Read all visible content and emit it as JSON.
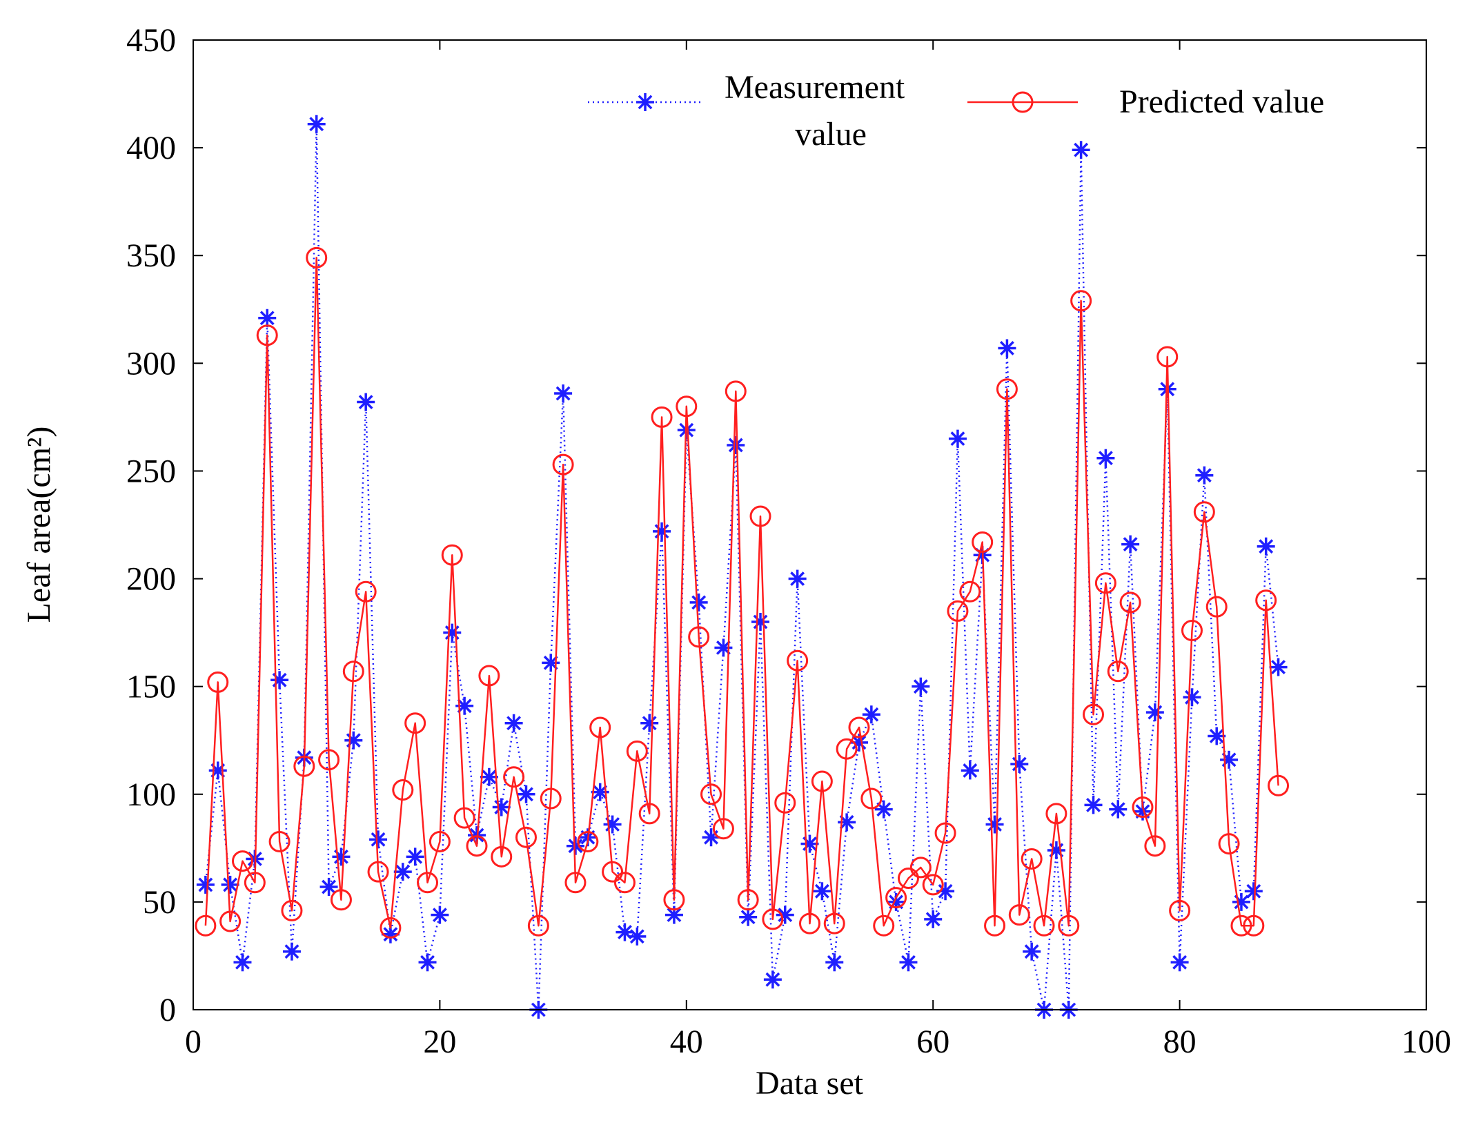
{
  "chart_data": {
    "type": "line",
    "title": "",
    "xlabel": "Data set",
    "ylabel": "Leaf area(cm²)",
    "xlim": [
      0,
      100
    ],
    "ylim": [
      0,
      450
    ],
    "xticks": [
      0,
      20,
      40,
      60,
      80,
      100
    ],
    "yticks": [
      0,
      50,
      100,
      150,
      200,
      250,
      300,
      350,
      400,
      450
    ],
    "grid": false,
    "legend_position": "top-right",
    "series": [
      {
        "name": "Measurement value",
        "name_lines": [
          "Measurement",
          "value"
        ],
        "color": "#1f1fff",
        "line_style": "dotted",
        "marker": "asterisk",
        "x": [
          1,
          2,
          3,
          4,
          5,
          6,
          7,
          8,
          9,
          10,
          11,
          12,
          13,
          14,
          15,
          16,
          17,
          18,
          19,
          20,
          21,
          22,
          23,
          24,
          25,
          26,
          27,
          28,
          29,
          30,
          31,
          32,
          33,
          34,
          35,
          36,
          37,
          38,
          39,
          40,
          41,
          42,
          43,
          44,
          45,
          46,
          47,
          48,
          49,
          50,
          51,
          52,
          53,
          54,
          55,
          56,
          57,
          58,
          59,
          60,
          61,
          62,
          63,
          64,
          65,
          66,
          67,
          68,
          69,
          70,
          71,
          72,
          73,
          74,
          75,
          76,
          77,
          78,
          79,
          80,
          81,
          82,
          83,
          84,
          85,
          86,
          87,
          88
        ],
        "values": [
          58,
          111,
          58,
          22,
          70,
          321,
          153,
          27,
          117,
          411,
          57,
          71,
          125,
          282,
          79,
          35,
          64,
          71,
          22,
          44,
          175,
          141,
          81,
          108,
          94,
          133,
          100,
          0,
          161,
          286,
          76,
          80,
          101,
          86,
          36,
          34,
          133,
          222,
          44,
          269,
          189,
          80,
          168,
          262,
          43,
          180,
          14,
          44,
          200,
          77,
          55,
          22,
          87,
          124,
          137,
          93,
          50,
          22,
          150,
          42,
          55,
          265,
          111,
          211,
          86,
          307,
          114,
          27,
          0,
          74,
          0,
          399,
          95,
          256,
          93,
          216,
          92,
          138,
          288,
          22,
          145,
          248,
          127,
          116,
          50,
          55,
          215,
          159
        ]
      },
      {
        "name": "Predicted value",
        "name_lines": [
          "Predicted value"
        ],
        "color": "#ff1f1f",
        "line_style": "solid",
        "marker": "circle",
        "x": [
          1,
          2,
          3,
          4,
          5,
          6,
          7,
          8,
          9,
          10,
          11,
          12,
          13,
          14,
          15,
          16,
          17,
          18,
          19,
          20,
          21,
          22,
          23,
          24,
          25,
          26,
          27,
          28,
          29,
          30,
          31,
          32,
          33,
          34,
          35,
          36,
          37,
          38,
          39,
          40,
          41,
          42,
          43,
          44,
          45,
          46,
          47,
          48,
          49,
          50,
          51,
          52,
          53,
          54,
          55,
          56,
          57,
          58,
          59,
          60,
          61,
          62,
          63,
          64,
          65,
          66,
          67,
          68,
          69,
          70,
          71,
          72,
          73,
          74,
          75,
          76,
          77,
          78,
          79,
          80,
          81,
          82,
          83,
          84,
          85,
          86,
          87,
          88
        ],
        "values": [
          39,
          152,
          41,
          69,
          59,
          313,
          78,
          46,
          113,
          349,
          116,
          51,
          157,
          194,
          64,
          38,
          102,
          133,
          59,
          78,
          211,
          89,
          76,
          155,
          71,
          108,
          80,
          39,
          98,
          253,
          59,
          78,
          131,
          64,
          59,
          120,
          91,
          275,
          51,
          280,
          173,
          100,
          84,
          287,
          51,
          229,
          42,
          96,
          162,
          40,
          106,
          40,
          121,
          131,
          98,
          39,
          52,
          61,
          66,
          58,
          82,
          185,
          194,
          217,
          39,
          288,
          44,
          70,
          39,
          91,
          39,
          329,
          137,
          198,
          157,
          189,
          94,
          76,
          303,
          46,
          176,
          231,
          187,
          77,
          39,
          39,
          190,
          104
        ]
      }
    ]
  }
}
